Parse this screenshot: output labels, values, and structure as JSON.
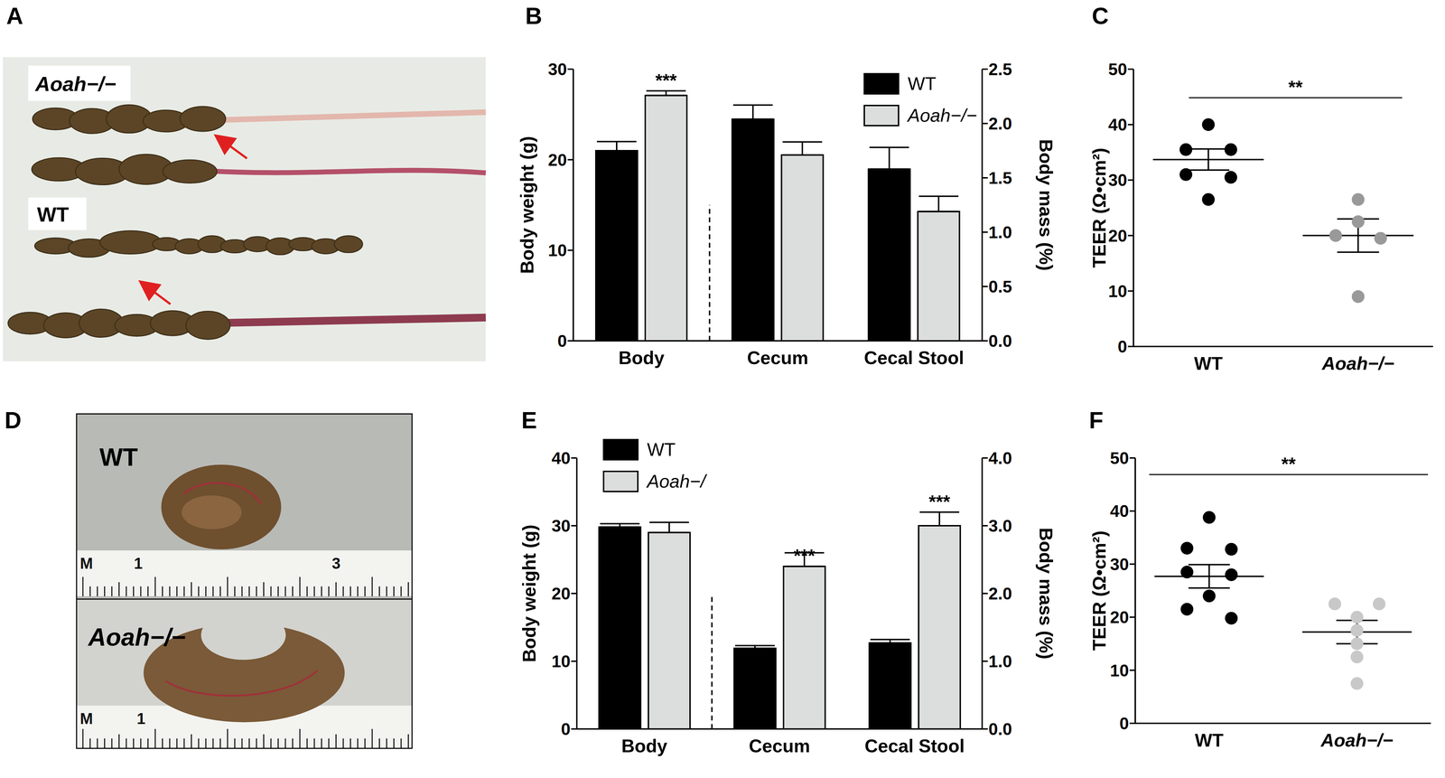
{
  "images": [
    {
      "panel": "A",
      "labels": [
        "Aoah−/−",
        "WT"
      ]
    },
    {
      "panel": "D",
      "labels": [
        "WT",
        "Aoah−/−"
      ],
      "rulers": [
        [
          "M",
          "1",
          "3"
        ],
        [
          "M",
          "1"
        ]
      ]
    }
  ],
  "chart_data": [
    {
      "panel": "B",
      "type": "bar",
      "categories": [
        "Body",
        "Cecum",
        "Cecal Stool"
      ],
      "ylabel": "Body weight (g)",
      "y2label": "Body mass (%)",
      "ylim": [
        0,
        30
      ],
      "yticks": [
        0,
        10,
        20,
        30
      ],
      "y2lim": [
        0,
        2.5
      ],
      "y2ticks": [
        {
          "value": 0,
          "label": "0.0"
        },
        0.5,
        {
          "value": 1,
          "label": "1.0"
        },
        1.5,
        {
          "value": 2,
          "label": "2.0"
        },
        2.5
      ],
      "legend": "upper right",
      "series": [
        {
          "name": "WT",
          "color": "#000000",
          "axis": "y",
          "values": [
            21,
            null,
            null
          ],
          "errors": [
            1,
            null,
            null
          ]
        },
        {
          "name": "Aoah−/−",
          "color": "#dcdddd",
          "axis": "y",
          "values": [
            27.1,
            null,
            null
          ],
          "errors": [
            0.5,
            null,
            null
          ],
          "annotations": [
            "***",
            null,
            null
          ]
        },
        {
          "name": "WT",
          "color": "#000000",
          "axis": "y2",
          "values": [
            null,
            2.04,
            1.58
          ],
          "errors": [
            null,
            0.13,
            0.2
          ]
        },
        {
          "name": "Aoah−/−",
          "color": "#dcdddd",
          "axis": "y2",
          "values": [
            null,
            1.71,
            1.19
          ],
          "errors": [
            null,
            0.12,
            0.14
          ]
        }
      ]
    },
    {
      "panel": "C",
      "type": "scatter",
      "categories": [
        "WT",
        "Aoah−/−"
      ],
      "ylabel": "TEER (Ω•cm²)",
      "ylim": [
        0,
        50
      ],
      "yticks": [
        0,
        10,
        20,
        30,
        40,
        50
      ],
      "colors": [
        "#000000",
        "#999999"
      ],
      "values": [
        [
          40,
          35.5,
          35.5,
          31,
          30.5,
          26.5
        ],
        [
          26.5,
          22.5,
          20,
          19.5,
          9
        ]
      ],
      "means": [
        33.7,
        20
      ],
      "errors": [
        1.9,
        3
      ],
      "annotations": [
        "**"
      ]
    },
    {
      "panel": "E",
      "type": "bar",
      "categories": [
        "Body",
        "Cecum",
        "Cecal Stool"
      ],
      "ylabel": "Body weight (g)",
      "y2label": "Body mass (%)",
      "ylim": [
        0,
        40
      ],
      "yticks": [
        0,
        10,
        20,
        30,
        40
      ],
      "y2lim": [
        0,
        4
      ],
      "y2ticks": [
        {
          "value": 0,
          "label": "0.0"
        },
        {
          "value": 1,
          "label": "1.0"
        },
        {
          "value": 2,
          "label": "2.0"
        },
        {
          "value": 3,
          "label": "3.0"
        },
        {
          "value": 4,
          "label": "4.0"
        }
      ],
      "legend": "upper left",
      "series": [
        {
          "name": "WT",
          "color": "#000000",
          "axis": "y",
          "values": [
            29.8,
            null,
            null
          ],
          "errors": [
            0.5,
            null,
            null
          ]
        },
        {
          "name": "Aoah−/",
          "color": "#dcdddd",
          "axis": "y",
          "values": [
            29,
            null,
            null
          ],
          "errors": [
            1.5,
            null,
            null
          ]
        },
        {
          "name": "WT",
          "color": "#000000",
          "axis": "y2",
          "values": [
            null,
            1.19,
            1.27
          ],
          "errors": [
            null,
            0.04,
            0.05
          ]
        },
        {
          "name": "Aoah−/",
          "color": "#dcdddd",
          "axis": "y2",
          "values": [
            null,
            2.4,
            3.0
          ],
          "errors": [
            null,
            0.2,
            0.2
          ],
          "annotations": [
            null,
            "***",
            "***"
          ]
        }
      ]
    },
    {
      "panel": "F",
      "type": "scatter",
      "categories": [
        "WT",
        "Aoah−/−"
      ],
      "ylabel": "TEER (Ω•cm²)",
      "ylim": [
        0,
        50
      ],
      "yticks": [
        0,
        10,
        20,
        30,
        40,
        50
      ],
      "colors": [
        "#000000",
        "#c8c8c8"
      ],
      "values": [
        [
          38.8,
          33,
          32.8,
          28.5,
          28,
          24,
          21.5,
          19.8
        ],
        [
          22.5,
          22.5,
          20,
          17.5,
          15,
          12.5,
          7.5
        ]
      ],
      "means": [
        27.7,
        17.2
      ],
      "errors": [
        2.2,
        2.2
      ],
      "annotations": [
        "**"
      ]
    }
  ]
}
